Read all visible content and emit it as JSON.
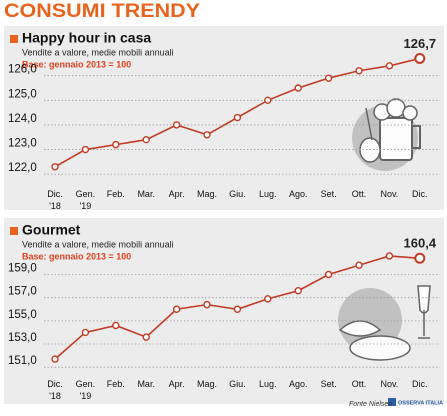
{
  "title": "CONSUMI TRENDY",
  "source": "Fonte Nielsen",
  "logo": "OSSERVA ITALIA",
  "chart_data": [
    {
      "type": "line",
      "title": "Happy hour in casa",
      "subtitle": "Vendite a valore, medie mobili annuali",
      "note": "Base: gennaio 2013 = 100",
      "categories": [
        "Dic. '18",
        "Gen. '19",
        "Feb.",
        "Mar.",
        "Apr.",
        "Mag.",
        "Giu.",
        "Lug.",
        "Ago.",
        "Set.",
        "Ott.",
        "Nov.",
        "Dic."
      ],
      "values": [
        122.3,
        123.0,
        123.2,
        123.4,
        124.0,
        123.6,
        124.3,
        125.0,
        125.5,
        125.9,
        126.2,
        126.4,
        126.7
      ],
      "value_labels": [
        null,
        null,
        null,
        null,
        null,
        null,
        null,
        null,
        null,
        null,
        null,
        null,
        "126,7"
      ],
      "color": "#c23a22",
      "ylim": [
        121.6,
        126.8
      ],
      "yticks": [
        {
          "value": 122,
          "label": "122,0"
        },
        {
          "value": 123,
          "label": "123,0"
        },
        {
          "value": 124,
          "label": "124,0"
        },
        {
          "value": 125,
          "label": "125,0"
        },
        {
          "value": 126,
          "label": "126,0"
        }
      ],
      "grid": true
    },
    {
      "type": "line",
      "title": "Gourmet",
      "subtitle": "Vendite a valore, medie mobili annuali",
      "note": "Base: gennaio 2013 = 100",
      "categories": [
        "Dic. '18",
        "Gen. '19",
        "Feb.",
        "Mar.",
        "Apr.",
        "Mag.",
        "Giu.",
        "Lug.",
        "Ago.",
        "Set.",
        "Ott.",
        "Nov.",
        "Dic."
      ],
      "values": [
        151.7,
        154.0,
        154.6,
        153.6,
        156.0,
        156.4,
        156.0,
        156.9,
        157.6,
        159.0,
        159.8,
        160.6,
        160.4
      ],
      "value_labels": [
        null,
        null,
        null,
        null,
        null,
        null,
        null,
        null,
        null,
        null,
        null,
        null,
        "160,4"
      ],
      "color": "#c23a22",
      "ylim": [
        150.5,
        161.2
      ],
      "yticks": [
        {
          "value": 151,
          "label": "151,0"
        },
        {
          "value": 153,
          "label": "153,0"
        },
        {
          "value": 155,
          "label": "155,0"
        },
        {
          "value": 157,
          "label": "157,0"
        },
        {
          "value": 159,
          "label": "159,0"
        }
      ],
      "grid": true
    }
  ]
}
